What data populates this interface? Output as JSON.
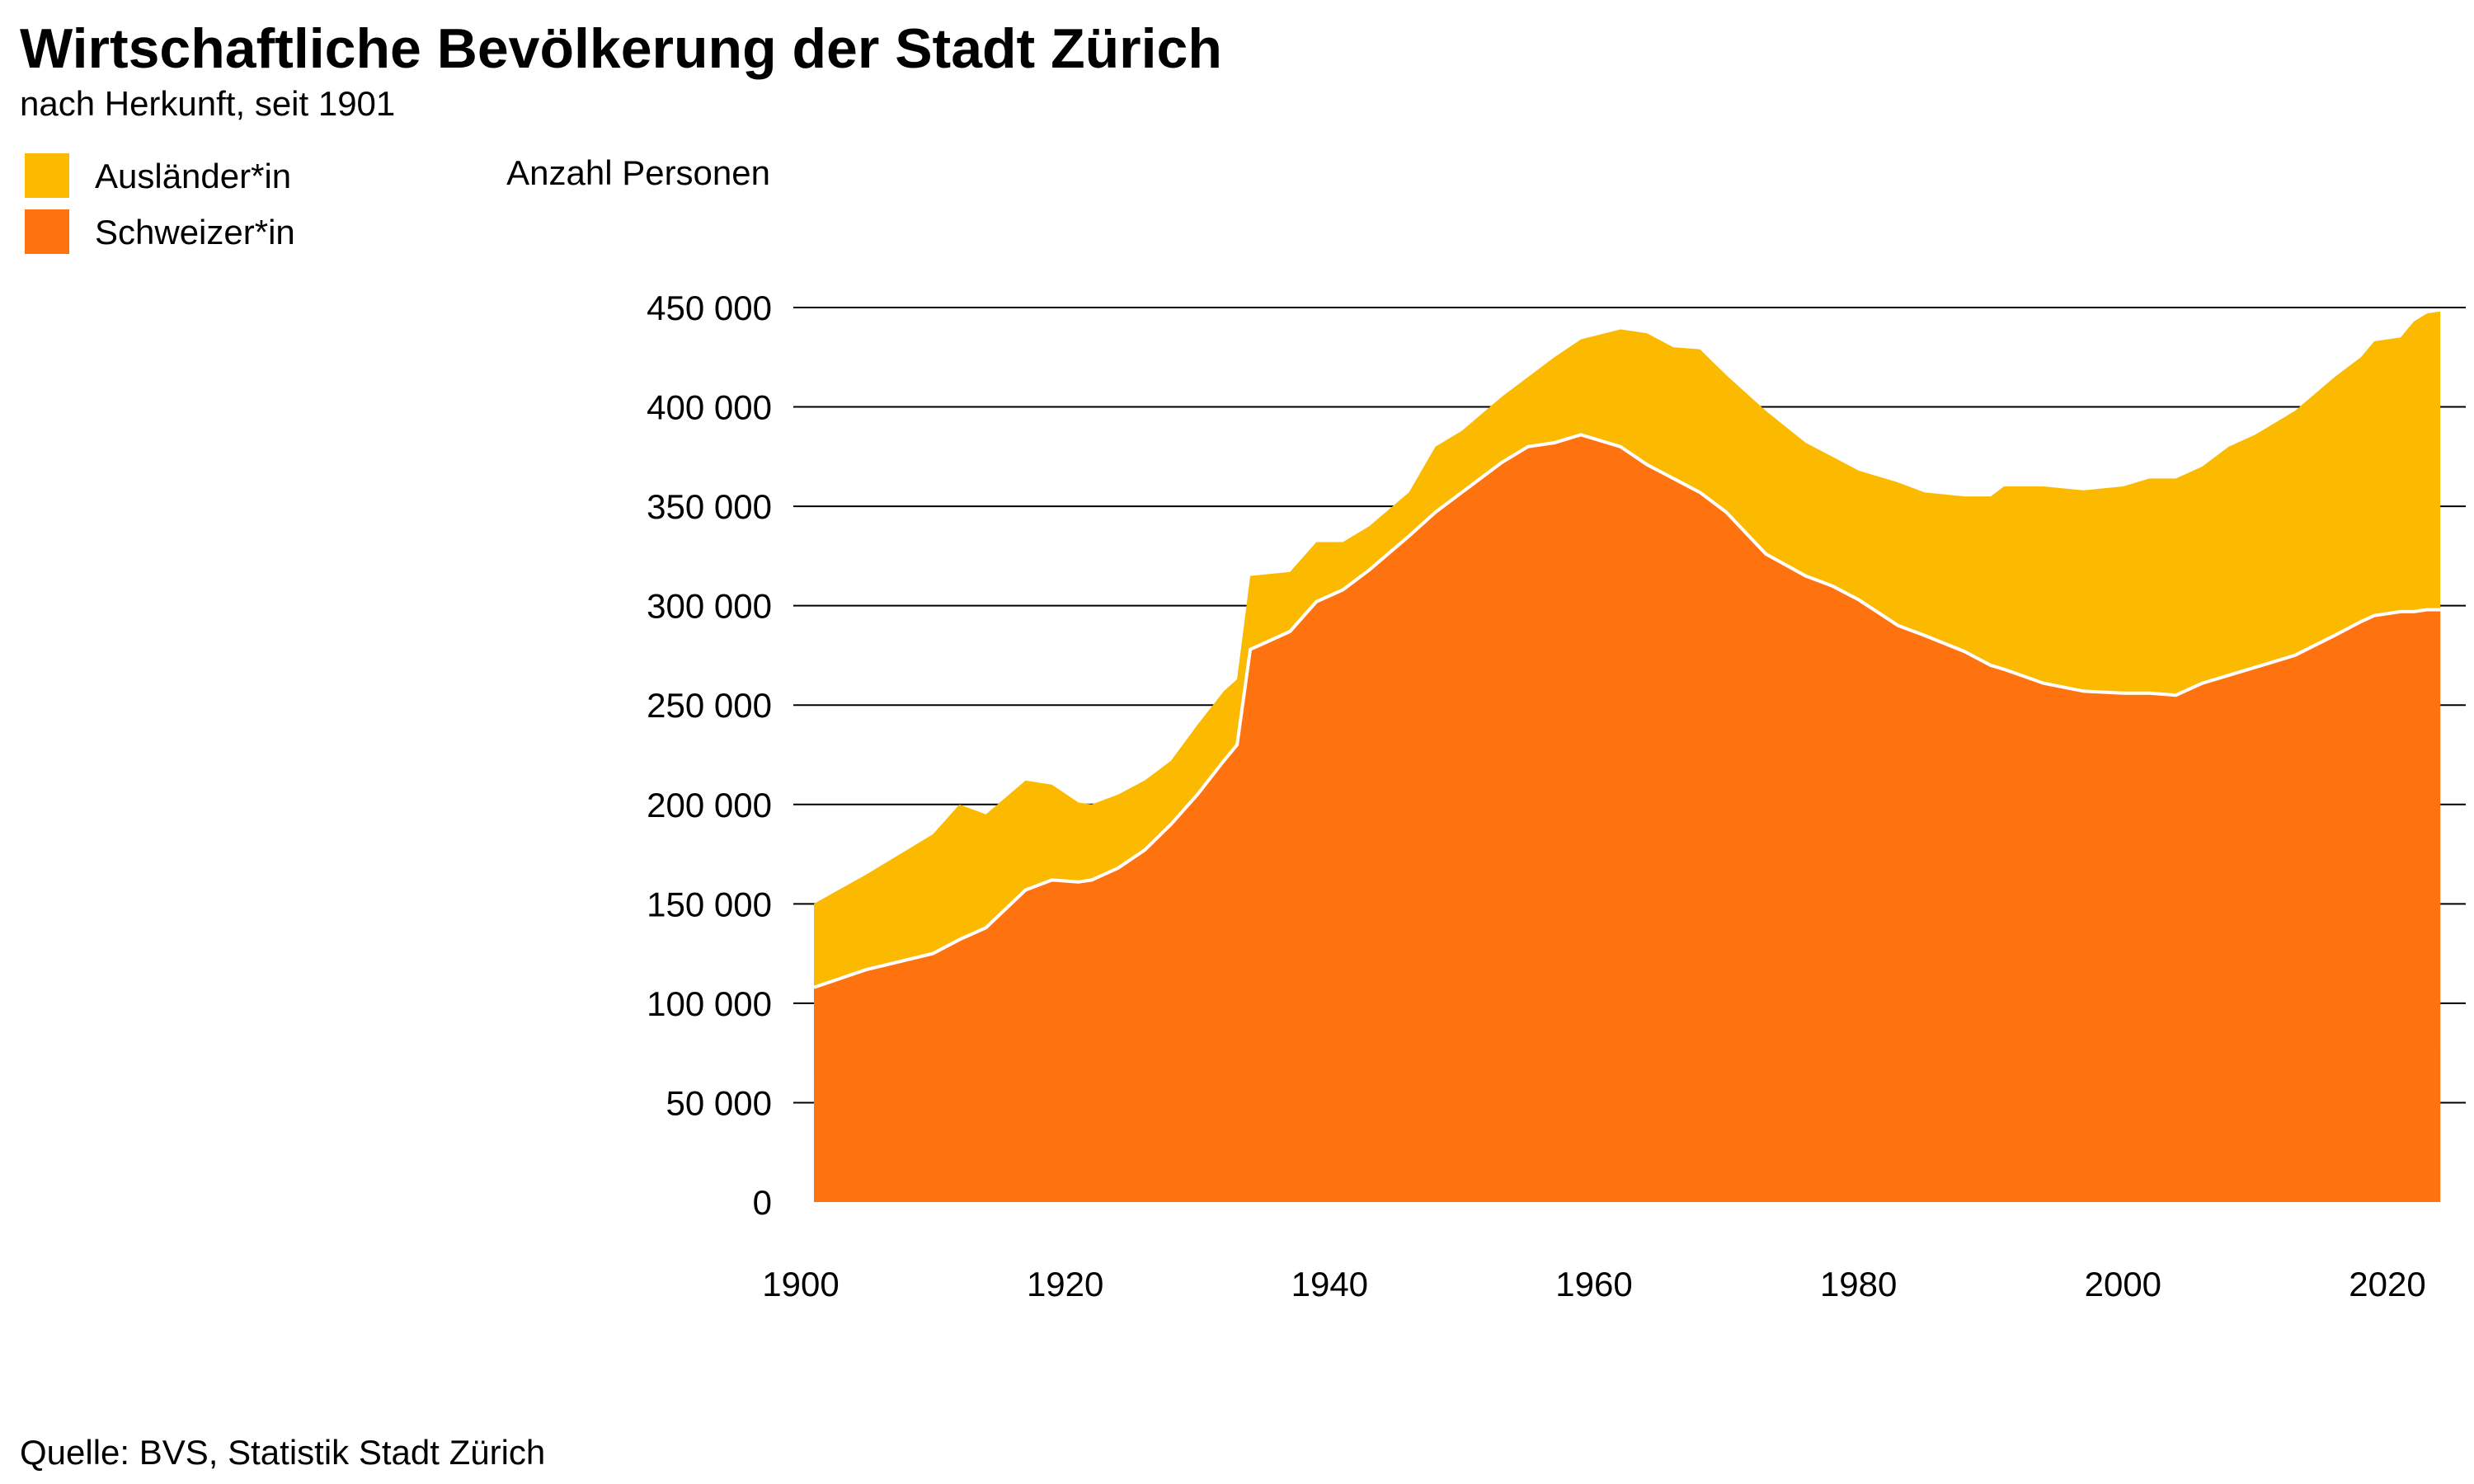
{
  "chart_data": {
    "type": "area",
    "stacked": true,
    "title": "Wirtschaftliche Bevölkerung der Stadt Zürich",
    "subtitle": "nach Herkunft, seit 1901",
    "ylabel": "Anzahl Personen",
    "xlabel": "",
    "source": "Quelle: BVS, Statistik Stadt Zürich",
    "ylim": [
      0,
      450000
    ],
    "xlim": [
      1900,
      2024
    ],
    "yticks": [
      0,
      50000,
      100000,
      150000,
      200000,
      250000,
      300000,
      350000,
      400000,
      450000
    ],
    "ytick_labels": [
      "0",
      "50 000",
      "100 000",
      "150 000",
      "200 000",
      "250 000",
      "300 000",
      "350 000",
      "400 000",
      "450 000"
    ],
    "xticks": [
      1900,
      1920,
      1940,
      1960,
      1980,
      2000,
      2020
    ],
    "xtick_labels": [
      "1900",
      "1920",
      "1940",
      "1960",
      "1980",
      "2000",
      "2020"
    ],
    "grid": true,
    "legend_position": "top-left",
    "x": [
      1901,
      1905,
      1910,
      1912,
      1914,
      1917,
      1919,
      1921,
      1922,
      1924,
      1926,
      1928,
      1930,
      1932,
      1933,
      1934,
      1937,
      1939,
      1941,
      1943,
      1946,
      1948,
      1950,
      1953,
      1955,
      1957,
      1959,
      1962,
      1964,
      1966,
      1968,
      1970,
      1973,
      1976,
      1978,
      1980,
      1983,
      1985,
      1988,
      1990,
      1991,
      1994,
      1997,
      2000,
      2002,
      2004,
      2006,
      2008,
      2010,
      2013,
      2016,
      2018,
      2019,
      2021,
      2022,
      2023,
      2024
    ],
    "series": [
      {
        "name": "Schweizer*in",
        "color": "#FF7210",
        "values": [
          108000,
          117000,
          125000,
          132000,
          138000,
          157000,
          162000,
          161000,
          162000,
          168000,
          177000,
          190000,
          205000,
          222000,
          230000,
          278000,
          287000,
          302000,
          308000,
          318000,
          335000,
          347000,
          357000,
          372000,
          380000,
          382000,
          386000,
          380000,
          371000,
          364000,
          357000,
          347000,
          326000,
          315000,
          310000,
          303000,
          290000,
          285000,
          277000,
          270000,
          268000,
          261000,
          257000,
          256000,
          256000,
          255000,
          261000,
          265000,
          269000,
          275000,
          285000,
          292000,
          295000,
          297000,
          297000,
          298000,
          298000
        ]
      },
      {
        "name": "Ausländer*in",
        "color": "#FBBA00",
        "values": [
          42000,
          48000,
          60000,
          68000,
          57000,
          55000,
          48000,
          40000,
          38000,
          37000,
          35000,
          32000,
          35000,
          35000,
          33000,
          37000,
          30000,
          30000,
          24000,
          22000,
          22000,
          33000,
          31000,
          33000,
          35000,
          43000,
          48000,
          59000,
          66000,
          66000,
          72000,
          69000,
          72000,
          67000,
          65000,
          65000,
          72000,
          72000,
          78000,
          85000,
          92000,
          99000,
          101000,
          104000,
          108000,
          109000,
          109000,
          115000,
          117000,
          123000,
          130000,
          133000,
          138000,
          138000,
          146000,
          149000,
          150000
        ]
      }
    ]
  }
}
